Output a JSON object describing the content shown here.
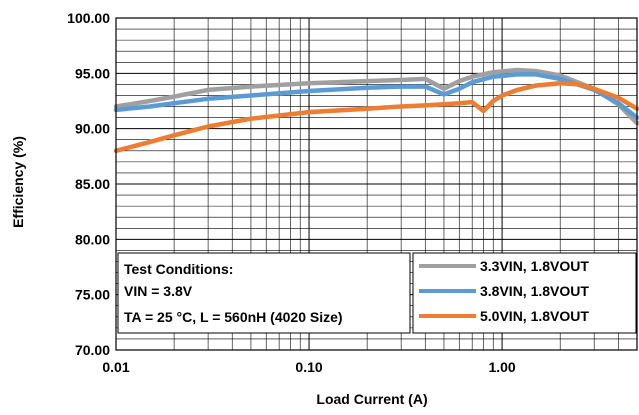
{
  "chart_data": {
    "type": "line",
    "xlabel": "Load Current (A)",
    "ylabel": "Efficiency (%)",
    "xscale": "log",
    "xlim": [
      0.01,
      5
    ],
    "ylim": [
      70,
      100
    ],
    "x_tick_labels": [
      "0.01",
      "0.10",
      "1.00"
    ],
    "y_tick_labels": [
      "100.00",
      "95.00",
      "90.00",
      "85.00",
      "80.00",
      "75.00",
      "70.00"
    ],
    "grid": true,
    "legend_position": "bottom-right",
    "annotation": {
      "lines": [
        "Test Conditions:",
        "VIN = 3.8V",
        "TA = 25 °C, L = 560nH (4020 Size)"
      ]
    },
    "series": [
      {
        "name": "3.3VIN, 1.8VOUT",
        "color": "#a0a0a0",
        "x": [
          0.01,
          0.015,
          0.02,
          0.03,
          0.05,
          0.1,
          0.2,
          0.3,
          0.4,
          0.5,
          0.6,
          0.7,
          0.9,
          1.2,
          1.5,
          2.0,
          3.0,
          4.0,
          5.0
        ],
        "y": [
          92.0,
          92.5,
          92.9,
          93.5,
          93.8,
          94.1,
          94.3,
          94.4,
          94.5,
          93.6,
          94.3,
          94.7,
          95.1,
          95.3,
          95.2,
          94.8,
          93.6,
          92.2,
          90.5
        ]
      },
      {
        "name": "3.8VIN, 1.8VOUT",
        "color": "#5b9bd5",
        "x": [
          0.01,
          0.015,
          0.02,
          0.03,
          0.05,
          0.1,
          0.2,
          0.3,
          0.4,
          0.5,
          0.6,
          0.7,
          0.9,
          1.2,
          1.5,
          2.0,
          3.0,
          4.0,
          5.0
        ],
        "y": [
          91.7,
          92.0,
          92.3,
          92.7,
          93.0,
          93.4,
          93.7,
          93.8,
          93.8,
          93.1,
          93.6,
          94.2,
          94.7,
          94.9,
          94.9,
          94.5,
          93.5,
          92.3,
          91.0
        ]
      },
      {
        "name": "5.0VIN, 1.8VOUT",
        "color": "#ed7d31",
        "x": [
          0.01,
          0.015,
          0.02,
          0.03,
          0.05,
          0.1,
          0.2,
          0.3,
          0.4,
          0.5,
          0.6,
          0.7,
          0.8,
          0.9,
          1.0,
          1.2,
          1.5,
          2.0,
          2.5,
          3.0,
          4.0,
          5.0
        ],
        "y": [
          88.0,
          88.8,
          89.4,
          90.2,
          90.9,
          91.5,
          91.8,
          92.0,
          92.1,
          92.2,
          92.3,
          92.4,
          91.6,
          92.5,
          93.0,
          93.5,
          93.9,
          94.1,
          94.0,
          93.6,
          92.8,
          91.8
        ]
      }
    ]
  }
}
